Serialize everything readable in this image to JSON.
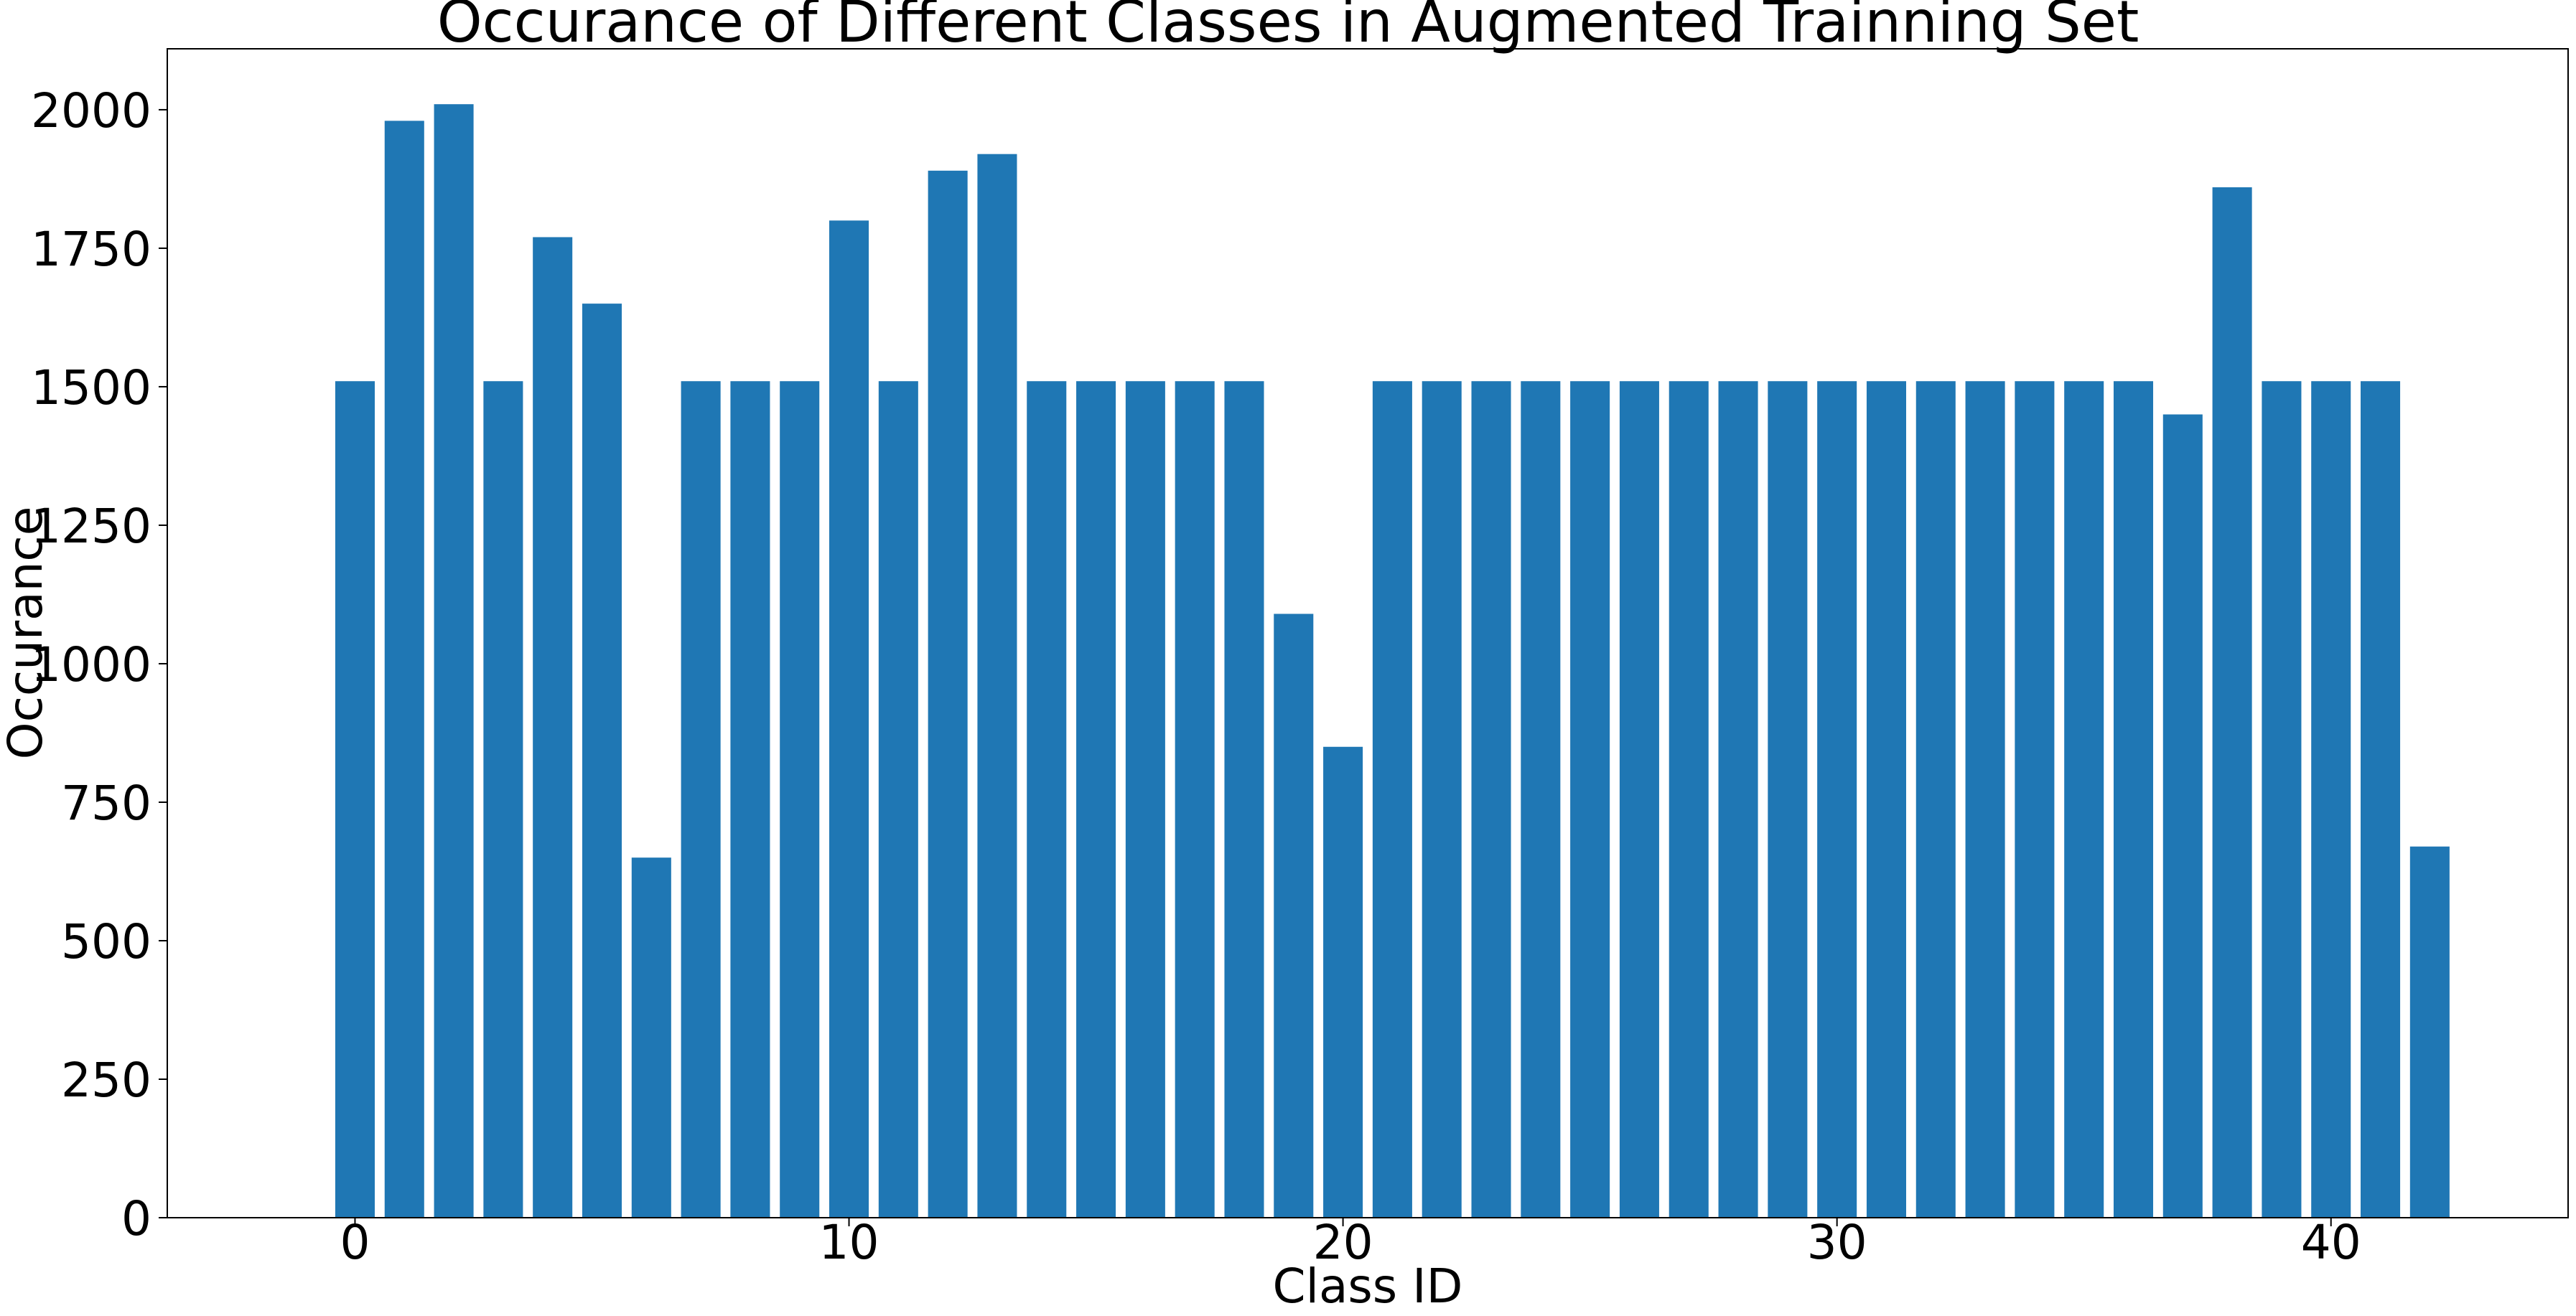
{
  "chart_data": {
    "type": "bar",
    "title": "Occurance of Different Classes in Augmented Trainning Set",
    "xlabel": "Class ID",
    "ylabel": "Occurance",
    "categories": [
      0,
      1,
      2,
      3,
      4,
      5,
      6,
      7,
      8,
      9,
      10,
      11,
      12,
      13,
      14,
      15,
      16,
      17,
      18,
      19,
      20,
      21,
      22,
      23,
      24,
      25,
      26,
      27,
      28,
      29,
      30,
      31,
      32,
      33,
      34,
      35,
      36,
      37,
      38,
      39,
      40,
      41,
      42
    ],
    "values": [
      1510,
      1980,
      2010,
      1510,
      1770,
      1650,
      650,
      1510,
      1510,
      1510,
      1800,
      1510,
      1890,
      1920,
      1510,
      1510,
      1510,
      1510,
      1510,
      1090,
      850,
      1510,
      1510,
      1510,
      1510,
      1510,
      1510,
      1510,
      1510,
      1510,
      1510,
      1510,
      1510,
      1510,
      1510,
      1510,
      1510,
      1450,
      1860,
      1510,
      1510,
      1510,
      670
    ],
    "xlim": [
      -3.8,
      44.8
    ],
    "ylim": [
      0,
      2110
    ],
    "xticks": [
      0,
      10,
      20,
      30,
      40
    ],
    "yticks": [
      0,
      250,
      500,
      750,
      1000,
      1250,
      1500,
      1750,
      2000
    ],
    "bar_color": "#1f77b4",
    "grid": false,
    "legend": "none"
  }
}
